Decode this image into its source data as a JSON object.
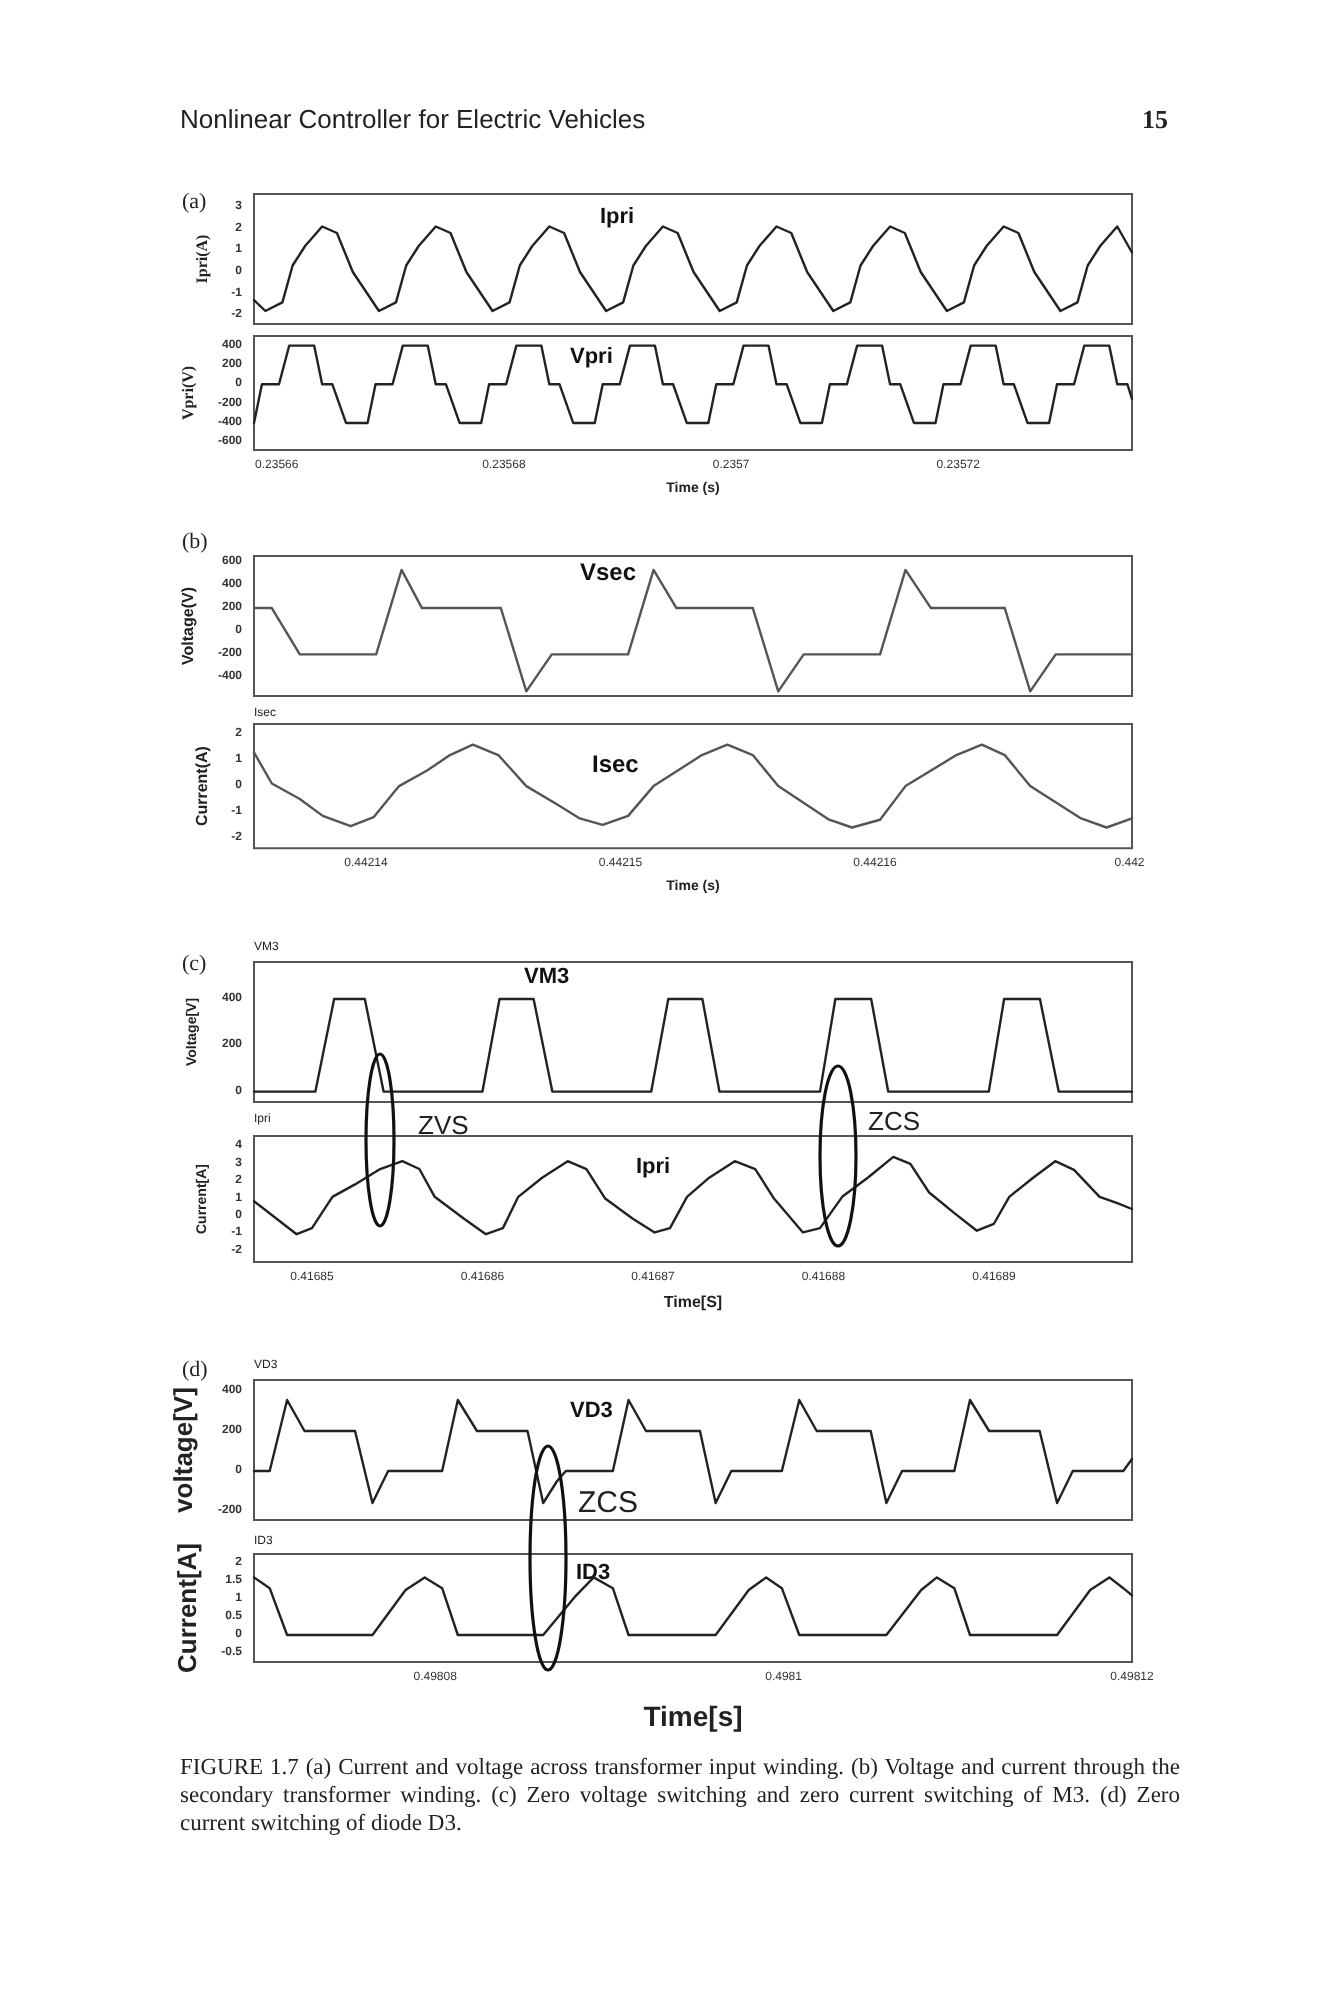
{
  "chart_data": [
    {
      "type": "line",
      "ylabel": "Ipri(A)",
      "xlim": [
        0.235658,
        0.2357353
      ],
      "ylim": [
        -2.4,
        3.6
      ],
      "yticks": [
        -2,
        -1,
        0,
        1,
        2,
        3
      ],
      "tick_labels": "y",
      "annotations": [
        "Nonlinear Controller for Electric Vehicles",
        "15",
        "(a)"
      ],
      "series": [
        {
          "name": "Ipri",
          "color": "#222222",
          "x": [
            0.235658,
            0.235659,
            0.2356605,
            0.2356614,
            0.2356625,
            0.235664,
            0.2356653,
            0.2356667,
            0.235669,
            0.2356705,
            0.2356714,
            0.2356725,
            0.235674,
            0.2356753,
            0.2356767,
            0.235679,
            0.2356805,
            0.2356814,
            0.2356825,
            0.235684,
            0.2356853,
            0.2356867,
            0.235689,
            0.2356905,
            0.2356914,
            0.2356925,
            0.235694,
            0.2356953,
            0.2356967,
            0.235699,
            0.2357005,
            0.2357014,
            0.2357025,
            0.235704,
            0.2357053,
            0.2357067,
            0.235709,
            0.2357105,
            0.2357114,
            0.2357125,
            0.235714,
            0.2357153,
            0.2357167,
            0.235719,
            0.2357205,
            0.2357214,
            0.2357225,
            0.235724,
            0.2357253,
            0.2357267,
            0.235729,
            0.2357305,
            0.2357314,
            0.2357325,
            0.235734,
            0.2357353
          ],
          "values": [
            -1.3,
            -1.8,
            -1.4,
            0.3,
            1.2,
            2.1,
            1.8,
            0,
            -1.8,
            -1.4,
            0.3,
            1.2,
            2.1,
            1.8,
            0,
            -1.8,
            -1.4,
            0.3,
            1.2,
            2.1,
            1.8,
            0,
            -1.8,
            -1.4,
            0.3,
            1.2,
            2.1,
            1.8,
            0,
            -1.8,
            -1.4,
            0.3,
            1.2,
            2.1,
            1.8,
            0,
            -1.8,
            -1.4,
            0.3,
            1.2,
            2.1,
            1.8,
            0,
            -1.8,
            -1.4,
            0.3,
            1.2,
            2.1,
            1.8,
            0,
            -1.8,
            -1.4,
            0.3,
            1.2,
            2.1,
            0.9
          ]
        }
      ]
    },
    {
      "type": "line",
      "ylabel": "Vpri(V)",
      "xlabel": "Time (s)",
      "xlim": [
        0.235658,
        0.2357353
      ],
      "xticks": [
        0.23566,
        0.23568,
        0.2357,
        0.23572
      ],
      "ylim": [
        -680,
        500
      ],
      "yticks": [
        -600,
        -400,
        -200,
        0,
        200,
        400
      ],
      "series": [
        {
          "name": "Vpri",
          "color": "#222222",
          "x": [
            0.235658,
            0.2356587,
            0.2356602,
            0.2356611,
            0.2356633,
            0.235664,
            0.2356649,
            0.2356661,
            0.235668,
            0.2356687,
            0.2356702,
            0.2356711,
            0.2356733,
            0.235674,
            0.2356749,
            0.2356761,
            0.235678,
            0.2356787,
            0.2356802,
            0.2356811,
            0.2356833,
            0.235684,
            0.2356849,
            0.2356861,
            0.235688,
            0.2356887,
            0.2356902,
            0.2356911,
            0.2356933,
            0.235694,
            0.2356949,
            0.2356961,
            0.235698,
            0.2356987,
            0.2357002,
            0.2357011,
            0.2357033,
            0.235704,
            0.2357049,
            0.2357061,
            0.235708,
            0.2357087,
            0.2357102,
            0.2357111,
            0.2357133,
            0.235714,
            0.2357149,
            0.2357161,
            0.235718,
            0.2357187,
            0.2357202,
            0.2357211,
            0.2357233,
            0.235724,
            0.2357249,
            0.2357261,
            0.235728,
            0.2357287,
            0.2357302,
            0.2357311,
            0.2357333,
            0.235734,
            0.2357349,
            0.2357353
          ],
          "values": [
            -400,
            0,
            0,
            400,
            400,
            0,
            0,
            -400,
            -400,
            0,
            0,
            400,
            400,
            0,
            0,
            -400,
            -400,
            0,
            0,
            400,
            400,
            0,
            0,
            -400,
            -400,
            0,
            0,
            400,
            400,
            0,
            0,
            -400,
            -400,
            0,
            0,
            400,
            400,
            0,
            0,
            -400,
            -400,
            0,
            0,
            400,
            400,
            0,
            0,
            -400,
            -400,
            0,
            0,
            400,
            400,
            0,
            0,
            -400,
            -400,
            0,
            0,
            400,
            400,
            0,
            0,
            -150
          ]
        }
      ]
    },
    {
      "type": "line",
      "ylabel": "Voltage(V)",
      "xlim": [
        0.4421356,
        0.4421701
      ],
      "ylim": [
        -560,
        650
      ],
      "yticks": [
        -400,
        -200,
        0,
        200,
        400,
        600
      ],
      "tick_labels": "y",
      "annotations": [
        "(b)"
      ],
      "series": [
        {
          "name": "Vsec",
          "color": "#555555",
          "x": [
            0.4421356,
            0.4421363,
            0.4421374,
            0.4421404,
            0.4421414,
            0.4421422,
            0.4421453,
            0.4421463,
            0.4421473,
            0.4421503,
            0.4421513,
            0.4421522,
            0.4421552,
            0.4421562,
            0.4421572,
            0.4421602,
            0.4421612,
            0.4421622,
            0.4421651,
            0.4421661,
            0.4421671,
            0.4421701
          ],
          "values": [
            200,
            200,
            -200,
            -200,
            530,
            200,
            200,
            -520,
            -200,
            -200,
            530,
            200,
            200,
            -520,
            -200,
            -200,
            530,
            200,
            200,
            -520,
            -200,
            -200
          ]
        }
      ]
    },
    {
      "type": "line",
      "ylabel": "Current(A)",
      "xlabel": "Time (s)",
      "xlim": [
        0.4421356,
        0.4421701
      ],
      "xticks": [
        0.44214,
        0.44215,
        0.44216,
        {
          "value": 0.44217,
          "label": "0.442"
        }
      ],
      "ylim": [
        -2.4,
        2.4
      ],
      "yticks": [
        -2,
        -1,
        0,
        1,
        2
      ],
      "annotations": [
        "Isec"
      ],
      "series": [
        {
          "name": "Isec",
          "color": "#555555",
          "x": [
            0.4421356,
            0.4421363,
            0.4421374,
            0.4421383,
            0.4421394,
            0.4421403,
            0.4421413,
            0.4421424,
            0.4421433,
            0.4421442,
            0.4421452,
            0.4421463,
            0.4421475,
            0.4421484,
            0.4421493,
            0.4421503,
            0.4421513,
            0.4421532,
            0.4421542,
            0.4421552,
            0.4421562,
            0.4421582,
            0.4421591,
            0.4421602,
            0.4421612,
            0.4421632,
            0.4421642,
            0.4421651,
            0.4421661,
            0.4421681,
            0.4421691,
            0.4421701
          ],
          "values": [
            1.3,
            0.1,
            -0.5,
            -1.15,
            -1.55,
            -1.2,
            0,
            0.6,
            1.2,
            1.6,
            1.2,
            0,
            -0.7,
            -1.25,
            -1.5,
            -1.15,
            0,
            1.2,
            1.6,
            1.2,
            0,
            -1.3,
            -1.6,
            -1.3,
            0,
            1.2,
            1.6,
            1.2,
            0,
            -1.25,
            -1.6,
            -1.25
          ]
        }
      ]
    },
    {
      "type": "line",
      "ylabel": "Voltage[V]",
      "xlim": [
        0.4168466,
        0.4168981
      ],
      "ylim": [
        -45,
        560
      ],
      "yticks": [
        0,
        200,
        400
      ],
      "tick_labels": "y",
      "annotations": [
        "(c)",
        "VM3"
      ],
      "series": [
        {
          "name": "VM3",
          "color": "#222222",
          "x": [
            0.4168466,
            0.4168502,
            0.4168513,
            0.4168531,
            0.4168542,
            0.41686,
            0.416861,
            0.416863,
            0.4168641,
            0.4168699,
            0.4168709,
            0.4168729,
            0.4168739,
            0.4168798,
            0.4168807,
            0.4168828,
            0.4168838,
            0.4168897,
            0.4168906,
            0.4168927,
            0.4168938,
            0.4168981
          ],
          "values": [
            0,
            0,
            400,
            400,
            0,
            0,
            400,
            400,
            0,
            0,
            400,
            400,
            0,
            0,
            400,
            400,
            0,
            0,
            400,
            400,
            0,
            0
          ]
        }
      ]
    },
    {
      "type": "line",
      "ylabel": "Current[A]",
      "xlabel": "Time[S]",
      "xlim": [
        0.4168466,
        0.4168981
      ],
      "xticks": [
        0.41685,
        0.41686,
        0.41687,
        0.41688,
        0.41689
      ],
      "ylim": [
        -2.65,
        4.6
      ],
      "yticks": [
        -2,
        -1,
        0,
        1,
        2,
        3,
        4
      ],
      "annotations": [
        "Ipri",
        "ZVS",
        "ZCS"
      ],
      "series": [
        {
          "name": "Ipri",
          "color": "#222222",
          "x": [
            0.4168466,
            0.4168491,
            0.41685,
            0.4168512,
            0.4168525,
            0.416854,
            0.4168553,
            0.4168563,
            0.4168572,
            0.4168589,
            0.4168602,
            0.4168612,
            0.4168621,
            0.4168635,
            0.416865,
            0.4168661,
            0.4168672,
            0.4168688,
            0.4168701,
            0.416871,
            0.416872,
            0.4168733,
            0.4168748,
            0.416876,
            0.4168771,
            0.4168788,
            0.4168798,
            0.4168811,
            0.4168826,
            0.4168841,
            0.4168851,
            0.4168862,
            0.4168877,
            0.416889,
            0.41689,
            0.4168909,
            0.4168923,
            0.4168936,
            0.4168947,
            0.4168962,
            0.4168972,
            0.4168981
          ],
          "values": [
            0.85,
            -1.05,
            -0.7,
            1.1,
            1.8,
            2.7,
            3.15,
            2.7,
            1.1,
            -0.15,
            -1.05,
            -0.7,
            1.1,
            2.2,
            3.15,
            2.7,
            1,
            -0.15,
            -0.95,
            -0.7,
            1.1,
            2.2,
            3.15,
            2.7,
            1,
            -0.95,
            -0.7,
            1.1,
            2.2,
            3.4,
            3,
            1.35,
            0.15,
            -0.85,
            -0.45,
            1.1,
            2.2,
            3.15,
            2.65,
            1.1,
            0.75,
            0.4
          ]
        }
      ]
    },
    {
      "type": "line",
      "ylabel": "voltage[V]",
      "xlim": [
        0.4980696,
        0.49812
      ],
      "ylim": [
        -245,
        455
      ],
      "yticks": [
        -200,
        0,
        200,
        400
      ],
      "tick_labels": "y",
      "annotations": [
        "(d)",
        "VD3",
        "ZCS"
      ],
      "series": [
        {
          "name": "VD3",
          "color": "#222222",
          "x": [
            0.4980696,
            0.4980705,
            0.4980715,
            0.4980725,
            0.4980754,
            0.4980764,
            0.4980773,
            0.4980804,
            0.4980813,
            0.4980824,
            0.4980853,
            0.4980862,
            0.498087,
            0.4980875,
            0.4980902,
            0.4980911,
            0.4980921,
            0.4980952,
            0.4980961,
            0.498097,
            0.4980999,
            0.4981009,
            0.4981019,
            0.498105,
            0.4981059,
            0.4981068,
            0.4981098,
            0.4981107,
            0.4981118,
            0.4981147,
            0.4981157,
            0.4981166,
            0.4981195,
            0.49812
          ],
          "values": [
            0,
            0,
            355,
            200,
            200,
            -160,
            0,
            0,
            355,
            200,
            200,
            -160,
            -50,
            0,
            0,
            355,
            200,
            200,
            -160,
            0,
            0,
            355,
            200,
            200,
            -160,
            0,
            0,
            355,
            200,
            200,
            -160,
            0,
            0,
            60
          ]
        }
      ]
    },
    {
      "type": "line",
      "ylabel": "Current[A]",
      "xlabel": "Time[s]",
      "xlim": [
        0.4980696,
        0.49812
      ],
      "xticks": [
        0.49808,
        0.4981,
        0.49812
      ],
      "ylim": [
        -0.75,
        2.25
      ],
      "yticks": [
        -0.5,
        0,
        0.5,
        1,
        1.5,
        2
      ],
      "annotations": [
        "ID3",
        "FIGURE 1.7 (a) Current and voltage across transformer input winding. (b) Voltage and current through the secondary transformer winding. (c) Zero voltage switching and zero current switching of M3. (d) Zero current switching of diode D3."
      ],
      "series": [
        {
          "name": "ID3",
          "color": "#222222",
          "x": [
            0.4980696,
            0.4980705,
            0.4980715,
            0.4980764,
            0.4980783,
            0.4980794,
            0.4980804,
            0.4980813,
            0.4980862,
            0.498088,
            0.4980891,
            0.4980902,
            0.4980911,
            0.4980961,
            0.498098,
            0.498099,
            0.4980999,
            0.4981009,
            0.4981059,
            0.4981079,
            0.4981088,
            0.4981098,
            0.4981107,
            0.4981157,
            0.4981176,
            0.4981187,
            0.4981195,
            0.49812
          ],
          "values": [
            1.6,
            1.3,
            0,
            0,
            1.25,
            1.6,
            1.3,
            0,
            0,
            1.05,
            1.6,
            1.3,
            0,
            0,
            1.25,
            1.6,
            1.3,
            0,
            0,
            1.25,
            1.6,
            1.3,
            0,
            0,
            1.25,
            1.6,
            1.3,
            1.1
          ]
        }
      ]
    }
  ]
}
